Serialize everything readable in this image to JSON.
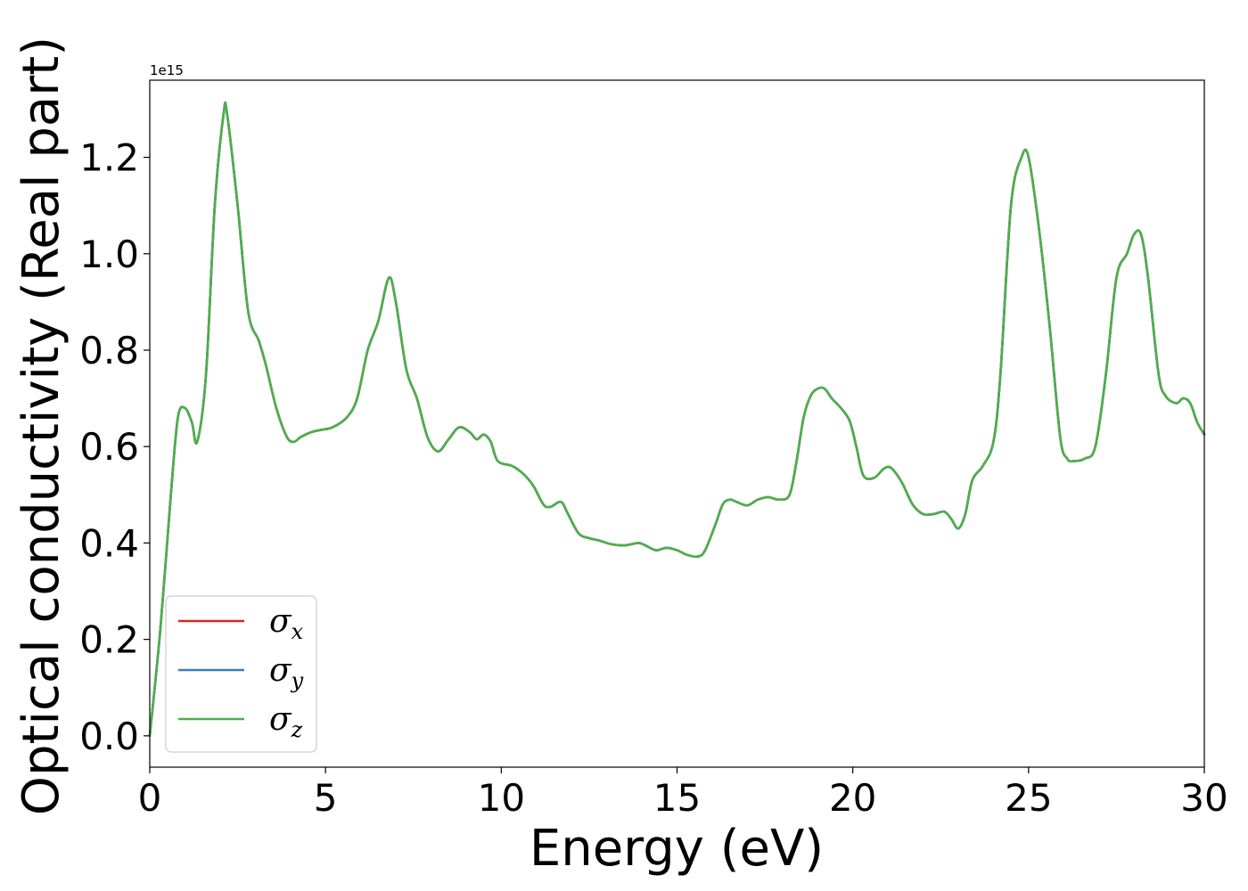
{
  "chart_data": {
    "type": "line",
    "xlabel": "Energy (eV)",
    "ylabel": "Optical conductivity (Real part)",
    "y_offset_label": "1e15",
    "y_multiplier": 1000000000000000.0,
    "xlim": [
      0,
      30
    ],
    "ylim": [
      -0.065,
      1.36
    ],
    "xticks": [
      0,
      5,
      10,
      15,
      20,
      25,
      30
    ],
    "xtick_labels": [
      "0",
      "5",
      "10",
      "15",
      "20",
      "25",
      "30"
    ],
    "yticks": [
      0.0,
      0.2,
      0.4,
      0.6,
      0.8,
      1.0,
      1.2
    ],
    "ytick_labels": [
      "0.0",
      "0.2",
      "0.4",
      "0.6",
      "0.8",
      "1.0",
      "1.2"
    ],
    "grid": false,
    "legend_position": "lower-left",
    "x": [
      0,
      0.3,
      0.6,
      0.8,
      1.0,
      1.2,
      1.35,
      1.6,
      1.85,
      2.1,
      2.2,
      2.5,
      2.8,
      3.1,
      3.3,
      3.6,
      3.9,
      4.1,
      4.3,
      4.6,
      4.9,
      5.2,
      5.6,
      5.9,
      6.2,
      6.5,
      6.8,
      7.0,
      7.3,
      7.6,
      7.9,
      8.2,
      8.5,
      8.8,
      9.1,
      9.3,
      9.5,
      9.7,
      9.9,
      10.3,
      10.6,
      10.9,
      11.2,
      11.4,
      11.7,
      11.9,
      12.2,
      12.5,
      12.8,
      13.1,
      13.5,
      13.9,
      14.1,
      14.4,
      14.7,
      15.0,
      15.3,
      15.6,
      15.8,
      16.1,
      16.3,
      16.5,
      16.7,
      17.0,
      17.3,
      17.6,
      17.9,
      18.2,
      18.4,
      18.6,
      18.8,
      19.0,
      19.2,
      19.4,
      19.6,
      19.9,
      20.1,
      20.3,
      20.6,
      20.9,
      21.1,
      21.4,
      21.7,
      22.0,
      22.3,
      22.6,
      22.8,
      23.0,
      23.2,
      23.4,
      23.7,
      24.0,
      24.2,
      24.5,
      24.8,
      25.0,
      25.3,
      25.6,
      25.9,
      26.1,
      26.3,
      26.6,
      26.9,
      27.2,
      27.5,
      27.8,
      28.0,
      28.2,
      28.4,
      28.7,
      28.9,
      29.2,
      29.4,
      29.6,
      29.8,
      30.0
    ],
    "series": [
      {
        "name": "σx",
        "base": "σ",
        "sub": "x",
        "color": "#d62728",
        "values": [
          0.0,
          0.22,
          0.5,
          0.66,
          0.68,
          0.65,
          0.61,
          0.75,
          1.1,
          1.29,
          1.29,
          1.1,
          0.88,
          0.82,
          0.77,
          0.68,
          0.62,
          0.61,
          0.62,
          0.63,
          0.635,
          0.64,
          0.66,
          0.7,
          0.8,
          0.86,
          0.95,
          0.9,
          0.76,
          0.7,
          0.62,
          0.59,
          0.615,
          0.64,
          0.63,
          0.615,
          0.625,
          0.61,
          0.57,
          0.56,
          0.545,
          0.52,
          0.48,
          0.475,
          0.485,
          0.46,
          0.42,
          0.41,
          0.405,
          0.398,
          0.395,
          0.4,
          0.395,
          0.385,
          0.39,
          0.385,
          0.375,
          0.372,
          0.385,
          0.44,
          0.48,
          0.49,
          0.485,
          0.478,
          0.49,
          0.495,
          0.49,
          0.5,
          0.57,
          0.66,
          0.705,
          0.72,
          0.72,
          0.7,
          0.685,
          0.655,
          0.6,
          0.54,
          0.535,
          0.555,
          0.555,
          0.525,
          0.48,
          0.46,
          0.46,
          0.465,
          0.45,
          0.43,
          0.46,
          0.53,
          0.56,
          0.61,
          0.75,
          1.1,
          1.2,
          1.2,
          1.05,
          0.85,
          0.62,
          0.575,
          0.57,
          0.575,
          0.6,
          0.75,
          0.95,
          1.0,
          1.04,
          1.04,
          0.95,
          0.75,
          0.705,
          0.69,
          0.7,
          0.69,
          0.65,
          0.625
        ]
      },
      {
        "name": "σy",
        "base": "σ",
        "sub": "y",
        "color": "#377eb8",
        "values": [
          0.0,
          0.22,
          0.5,
          0.66,
          0.68,
          0.65,
          0.61,
          0.75,
          1.1,
          1.29,
          1.29,
          1.1,
          0.88,
          0.82,
          0.77,
          0.68,
          0.62,
          0.61,
          0.62,
          0.63,
          0.635,
          0.64,
          0.66,
          0.7,
          0.8,
          0.86,
          0.95,
          0.9,
          0.76,
          0.7,
          0.62,
          0.59,
          0.615,
          0.64,
          0.63,
          0.615,
          0.625,
          0.61,
          0.57,
          0.56,
          0.545,
          0.52,
          0.48,
          0.475,
          0.485,
          0.46,
          0.42,
          0.41,
          0.405,
          0.398,
          0.395,
          0.4,
          0.395,
          0.385,
          0.39,
          0.385,
          0.375,
          0.372,
          0.385,
          0.44,
          0.48,
          0.49,
          0.485,
          0.478,
          0.49,
          0.495,
          0.49,
          0.5,
          0.57,
          0.66,
          0.705,
          0.72,
          0.72,
          0.7,
          0.685,
          0.655,
          0.6,
          0.54,
          0.535,
          0.555,
          0.555,
          0.525,
          0.48,
          0.46,
          0.46,
          0.465,
          0.45,
          0.43,
          0.46,
          0.53,
          0.56,
          0.61,
          0.75,
          1.1,
          1.2,
          1.2,
          1.05,
          0.85,
          0.62,
          0.575,
          0.57,
          0.575,
          0.6,
          0.75,
          0.95,
          1.0,
          1.04,
          1.04,
          0.95,
          0.75,
          0.705,
          0.69,
          0.7,
          0.69,
          0.65,
          0.625
        ]
      },
      {
        "name": "σz",
        "base": "σ",
        "sub": "z",
        "color": "#4daf4a",
        "values": [
          0.0,
          0.22,
          0.5,
          0.66,
          0.68,
          0.65,
          0.61,
          0.75,
          1.1,
          1.29,
          1.29,
          1.1,
          0.88,
          0.82,
          0.77,
          0.68,
          0.62,
          0.61,
          0.62,
          0.63,
          0.635,
          0.64,
          0.66,
          0.7,
          0.8,
          0.86,
          0.95,
          0.9,
          0.76,
          0.7,
          0.62,
          0.59,
          0.615,
          0.64,
          0.63,
          0.615,
          0.625,
          0.61,
          0.57,
          0.56,
          0.545,
          0.52,
          0.48,
          0.475,
          0.485,
          0.46,
          0.42,
          0.41,
          0.405,
          0.398,
          0.395,
          0.4,
          0.395,
          0.385,
          0.39,
          0.385,
          0.375,
          0.372,
          0.385,
          0.44,
          0.48,
          0.49,
          0.485,
          0.478,
          0.49,
          0.495,
          0.49,
          0.5,
          0.57,
          0.66,
          0.705,
          0.72,
          0.72,
          0.7,
          0.685,
          0.655,
          0.6,
          0.54,
          0.535,
          0.555,
          0.555,
          0.525,
          0.48,
          0.46,
          0.46,
          0.465,
          0.45,
          0.43,
          0.46,
          0.53,
          0.56,
          0.61,
          0.75,
          1.1,
          1.2,
          1.2,
          1.05,
          0.85,
          0.62,
          0.575,
          0.57,
          0.575,
          0.6,
          0.75,
          0.95,
          1.0,
          1.04,
          1.04,
          0.95,
          0.75,
          0.705,
          0.69,
          0.7,
          0.69,
          0.65,
          0.625
        ]
      }
    ]
  }
}
